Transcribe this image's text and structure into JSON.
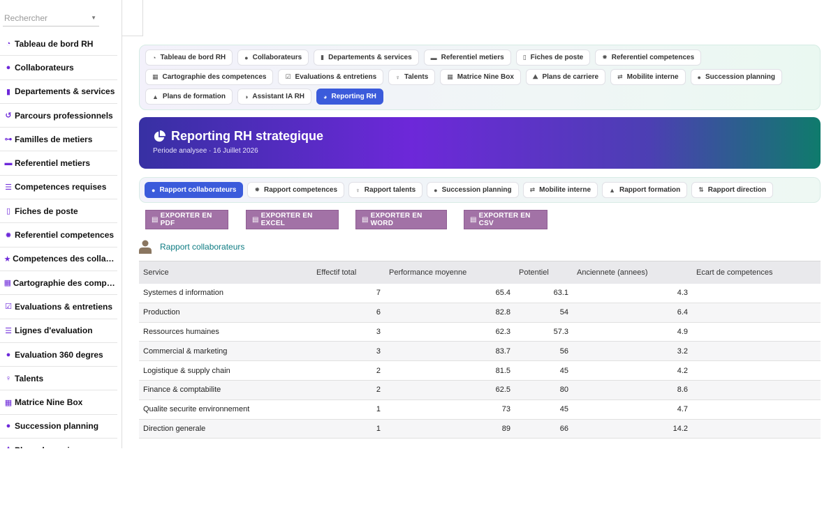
{
  "search": {
    "placeholder": "Rechercher"
  },
  "sidebar": {
    "items": [
      {
        "label": "Tableau de bord RH",
        "icon": "dashboard-icon"
      },
      {
        "label": "Collaborateurs",
        "icon": "user-icon"
      },
      {
        "label": "Departements & services",
        "icon": "building-icon"
      },
      {
        "label": "Parcours professionnels",
        "icon": "history-icon"
      },
      {
        "label": "Familles de metiers",
        "icon": "sitemap-icon"
      },
      {
        "label": "Referentiel metiers",
        "icon": "briefcase-icon"
      },
      {
        "label": "Competences requises",
        "icon": "list-icon"
      },
      {
        "label": "Fiches de poste",
        "icon": "file-icon"
      },
      {
        "label": "Referentiel competences",
        "icon": "badge-icon"
      },
      {
        "label": "Competences des collaborateurs",
        "icon": "star-icon"
      },
      {
        "label": "Cartographie des competences",
        "icon": "grid-icon"
      },
      {
        "label": "Evaluations & entretiens",
        "icon": "clipboard-check-icon"
      },
      {
        "label": "Lignes d'evaluation",
        "icon": "list-icon"
      },
      {
        "label": "Evaluation 360 degres",
        "icon": "comments-icon"
      },
      {
        "label": "Talents",
        "icon": "award-icon"
      },
      {
        "label": "Matrice Nine Box",
        "icon": "grid-icon"
      },
      {
        "label": "Succession planning",
        "icon": "user-tie-icon"
      },
      {
        "label": "Plans de carriere",
        "icon": "road-icon"
      }
    ]
  },
  "nav": {
    "tabs": [
      {
        "label": "Tableau de bord RH",
        "icon": "dashboard-icon",
        "active": false
      },
      {
        "label": "Collaborateurs",
        "icon": "user-icon",
        "active": false
      },
      {
        "label": "Departements & services",
        "icon": "building-icon",
        "active": false
      },
      {
        "label": "Referentiel metiers",
        "icon": "briefcase-icon",
        "active": false
      },
      {
        "label": "Fiches de poste",
        "icon": "file-icon",
        "active": false
      },
      {
        "label": "Referentiel competences",
        "icon": "badge-icon",
        "active": false
      },
      {
        "label": "Cartographie des competences",
        "icon": "grid-icon",
        "active": false
      },
      {
        "label": "Evaluations & entretiens",
        "icon": "clipboard-check-icon",
        "active": false
      },
      {
        "label": "Talents",
        "icon": "award-icon",
        "active": false
      },
      {
        "label": "Matrice Nine Box",
        "icon": "grid-icon",
        "active": false
      },
      {
        "label": "Plans de carriere",
        "icon": "road-icon",
        "active": false
      },
      {
        "label": "Mobilite interne",
        "icon": "exchange-icon",
        "active": false
      },
      {
        "label": "Succession planning",
        "icon": "user-tie-icon",
        "active": false
      },
      {
        "label": "Plans de formation",
        "icon": "graduation-cap-icon",
        "active": false
      },
      {
        "label": "Assistant IA RH",
        "icon": "brain-icon",
        "active": false
      },
      {
        "label": "Reporting RH",
        "icon": "chart-pie-icon",
        "active": true
      }
    ]
  },
  "hero": {
    "title": "Reporting RH strategique",
    "subtitle": "Periode analysee · 16 Juillet 2026",
    "icon": "chart-pie-icon"
  },
  "report_tabs": [
    {
      "label": "Rapport collaborateurs",
      "icon": "user-icon",
      "active": true
    },
    {
      "label": "Rapport competences",
      "icon": "badge-icon",
      "active": false
    },
    {
      "label": "Rapport talents",
      "icon": "award-icon",
      "active": false
    },
    {
      "label": "Succession planning",
      "icon": "user-tie-icon",
      "active": false
    },
    {
      "label": "Mobilite interne",
      "icon": "exchange-icon",
      "active": false
    },
    {
      "label": "Rapport formation",
      "icon": "graduation-cap-icon",
      "active": false
    },
    {
      "label": "Rapport direction",
      "icon": "sort-icon",
      "active": false
    }
  ],
  "exports": [
    {
      "label": "EXPORTER EN PDF",
      "icon": "file-pdf-icon"
    },
    {
      "label": "EXPORTER EN EXCEL",
      "icon": "file-excel-icon"
    },
    {
      "label": "EXPORTER EN WORD",
      "icon": "file-word-icon"
    },
    {
      "label": "EXPORTER EN CSV",
      "icon": "file-csv-icon"
    }
  ],
  "report": {
    "title": "Rapport collaborateurs",
    "icon": "user-icon",
    "columns": [
      "Service",
      "Effectif total",
      "Performance moyenne",
      "Potentiel",
      "Anciennete (annees)",
      "Ecart de competences"
    ],
    "rows": [
      [
        "Systemes d information",
        "7",
        "65.4",
        "63.1",
        "4.3",
        ""
      ],
      [
        "Production",
        "6",
        "82.8",
        "54",
        "6.4",
        ""
      ],
      [
        "Ressources humaines",
        "3",
        "62.3",
        "57.3",
        "4.9",
        ""
      ],
      [
        "Commercial & marketing",
        "3",
        "83.7",
        "56",
        "3.2",
        ""
      ],
      [
        "Logistique & supply chain",
        "2",
        "81.5",
        "45",
        "4.2",
        ""
      ],
      [
        "Finance & comptabilite",
        "2",
        "62.5",
        "80",
        "8.6",
        ""
      ],
      [
        "Qualite securite environnement",
        "1",
        "73",
        "45",
        "4.7",
        ""
      ],
      [
        "Direction generale",
        "1",
        "89",
        "66",
        "14.2",
        ""
      ]
    ]
  },
  "colors": {
    "accent": "#3b5bdb",
    "brand_purple": "#6d28d9",
    "export_button": "#a272a6",
    "link_teal": "#0d7b82"
  }
}
